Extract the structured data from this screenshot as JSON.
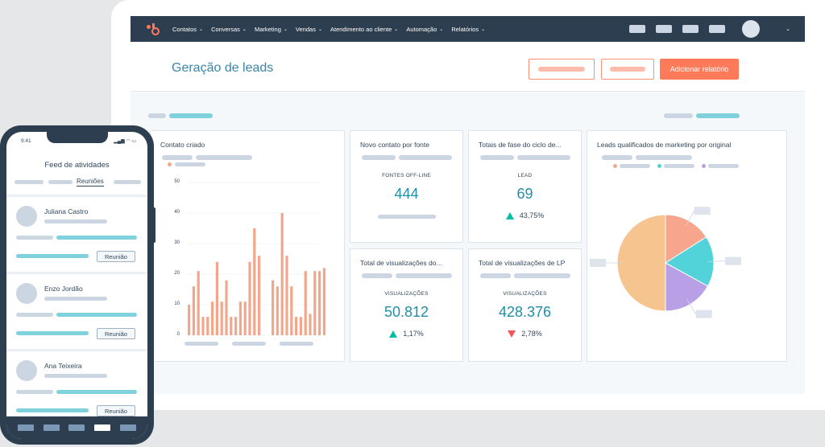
{
  "nav": {
    "items": [
      {
        "label": "Contatos"
      },
      {
        "label": "Conversas"
      },
      {
        "label": "Marketing"
      },
      {
        "label": "Vendas"
      },
      {
        "label": "Atendimento ao cliente"
      },
      {
        "label": "Automação"
      },
      {
        "label": "Relatórios"
      }
    ],
    "chevron": "⌄"
  },
  "header": {
    "title": "Geração de leads",
    "primary_button": "Adicionar relatório"
  },
  "colors": {
    "nav_bg": "#2d3e50",
    "accent": "#ff7a59",
    "teal": "#1f8fa8",
    "bar": "#f2a68b",
    "pie": [
      "#f8a58d",
      "#51d3d9",
      "#b9a0e6",
      "#f5c48f"
    ]
  },
  "cards": {
    "contacts_created": {
      "title": "Contato criado"
    },
    "new_contact_source": {
      "title": "Novo contato por fonte",
      "label": "FONTES OFF-LINE",
      "value": "444"
    },
    "lifecycle": {
      "title": "Totais de fase do ciclo de...",
      "label": "LEAD",
      "value": "69",
      "change": "43,75%"
    },
    "views1": {
      "title": "Total de visualizações do...",
      "label": "VISUALIZAÇÕES",
      "value": "50.812",
      "change": "1,17%"
    },
    "views_lp": {
      "title": "Total de visualizações de LP",
      "label": "VISUALIZAÇÕES",
      "value": "428.376",
      "change": "2,78%"
    },
    "mql": {
      "title": "Leads qualificados de marketing por original"
    }
  },
  "chart_data": [
    {
      "type": "bar",
      "title": "Contato criado",
      "ylim": [
        0,
        50
      ],
      "yticks": [
        "0",
        "10",
        "20",
        "30",
        "40",
        "50"
      ],
      "series": [
        {
          "values": [
            10,
            16,
            21,
            6,
            6,
            11,
            24,
            11,
            18,
            6,
            6,
            11,
            11,
            24,
            35,
            26
          ]
        },
        {
          "values": [
            18,
            16,
            40,
            26,
            16,
            6,
            6,
            21,
            7,
            21,
            21,
            22
          ]
        }
      ]
    },
    {
      "type": "pie",
      "title": "Leads qualificados de marketing por original",
      "values": [
        16,
        17,
        17,
        50
      ]
    }
  ],
  "phone": {
    "time": "9:41",
    "status": "▂▄▆ ◠ ▭",
    "title": "Feed de atividades",
    "active_tab": "Reuniões",
    "activities": [
      {
        "name": "Juliana Castro",
        "button": "Reunião"
      },
      {
        "name": "Enzo Jordão",
        "button": "Reunião"
      },
      {
        "name": "Ana Teixeira",
        "button": "Reunião"
      }
    ]
  }
}
